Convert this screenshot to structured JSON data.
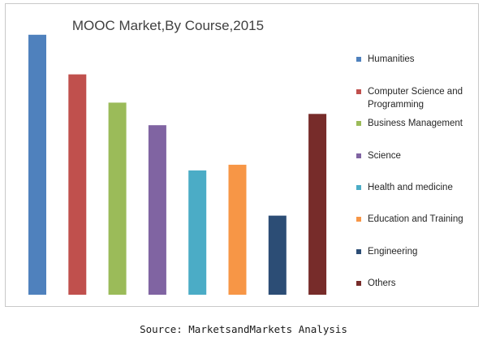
{
  "chart_data": {
    "type": "bar",
    "title": "MOOC Market,By Course,2015",
    "categories": [
      "Humanities",
      "Computer Science and Programming",
      "Business Management",
      "Science",
      "Health and medicine",
      "Education and Training",
      "Engineering",
      "Others"
    ],
    "legend_labels": [
      "Humanities",
      "Computer Science and\nProgramming",
      "Business Management",
      "Science",
      "Health and medicine",
      "Education and Training",
      "Engineering",
      "Others"
    ],
    "values": [
      23,
      19.5,
      17,
      15,
      11,
      11.5,
      7,
      16
    ],
    "ylim": [
      0,
      25
    ],
    "colors": [
      "#4f81bd",
      "#c0504d",
      "#9bbb59",
      "#8064a2",
      "#4bacc6",
      "#f79646",
      "#2c4d75",
      "#772c2a"
    ],
    "xlabel": "",
    "ylabel": "",
    "grid": false,
    "legend_position": "right"
  },
  "source": "Source: MarketsandMarkets Analysis"
}
